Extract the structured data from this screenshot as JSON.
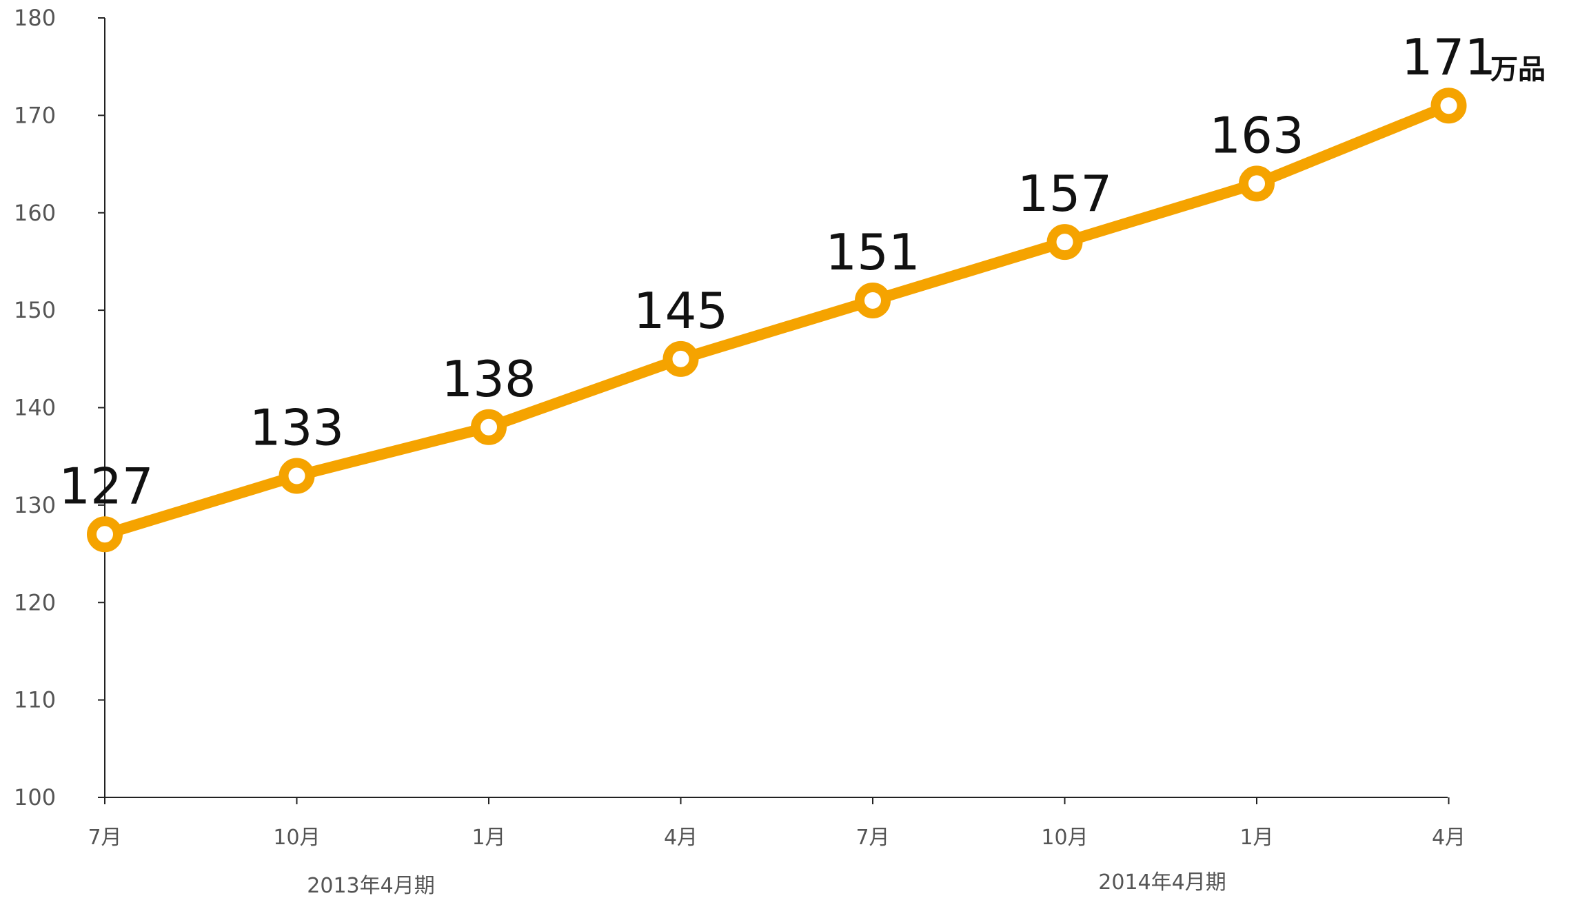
{
  "chart_data": {
    "type": "line",
    "categories": [
      "7月",
      "10月",
      "1月",
      "4月",
      "7月",
      "10月",
      "1月",
      "4月"
    ],
    "series": [
      {
        "values": [
          127,
          133,
          138,
          145,
          151,
          157,
          163,
          171
        ]
      }
    ],
    "data_labels": [
      "127",
      "133",
      "138",
      "145",
      "151",
      "157",
      "163",
      "171"
    ],
    "unit_label": "万品",
    "period_labels": [
      "2013年4月期",
      "2014年4月期"
    ],
    "ylim": [
      100,
      180
    ],
    "yticks": [
      "100",
      "110",
      "120",
      "130",
      "140",
      "150",
      "160",
      "170",
      "180"
    ],
    "grid": false,
    "line_color": "#F5A300",
    "marker_fill": "#ffffff"
  }
}
